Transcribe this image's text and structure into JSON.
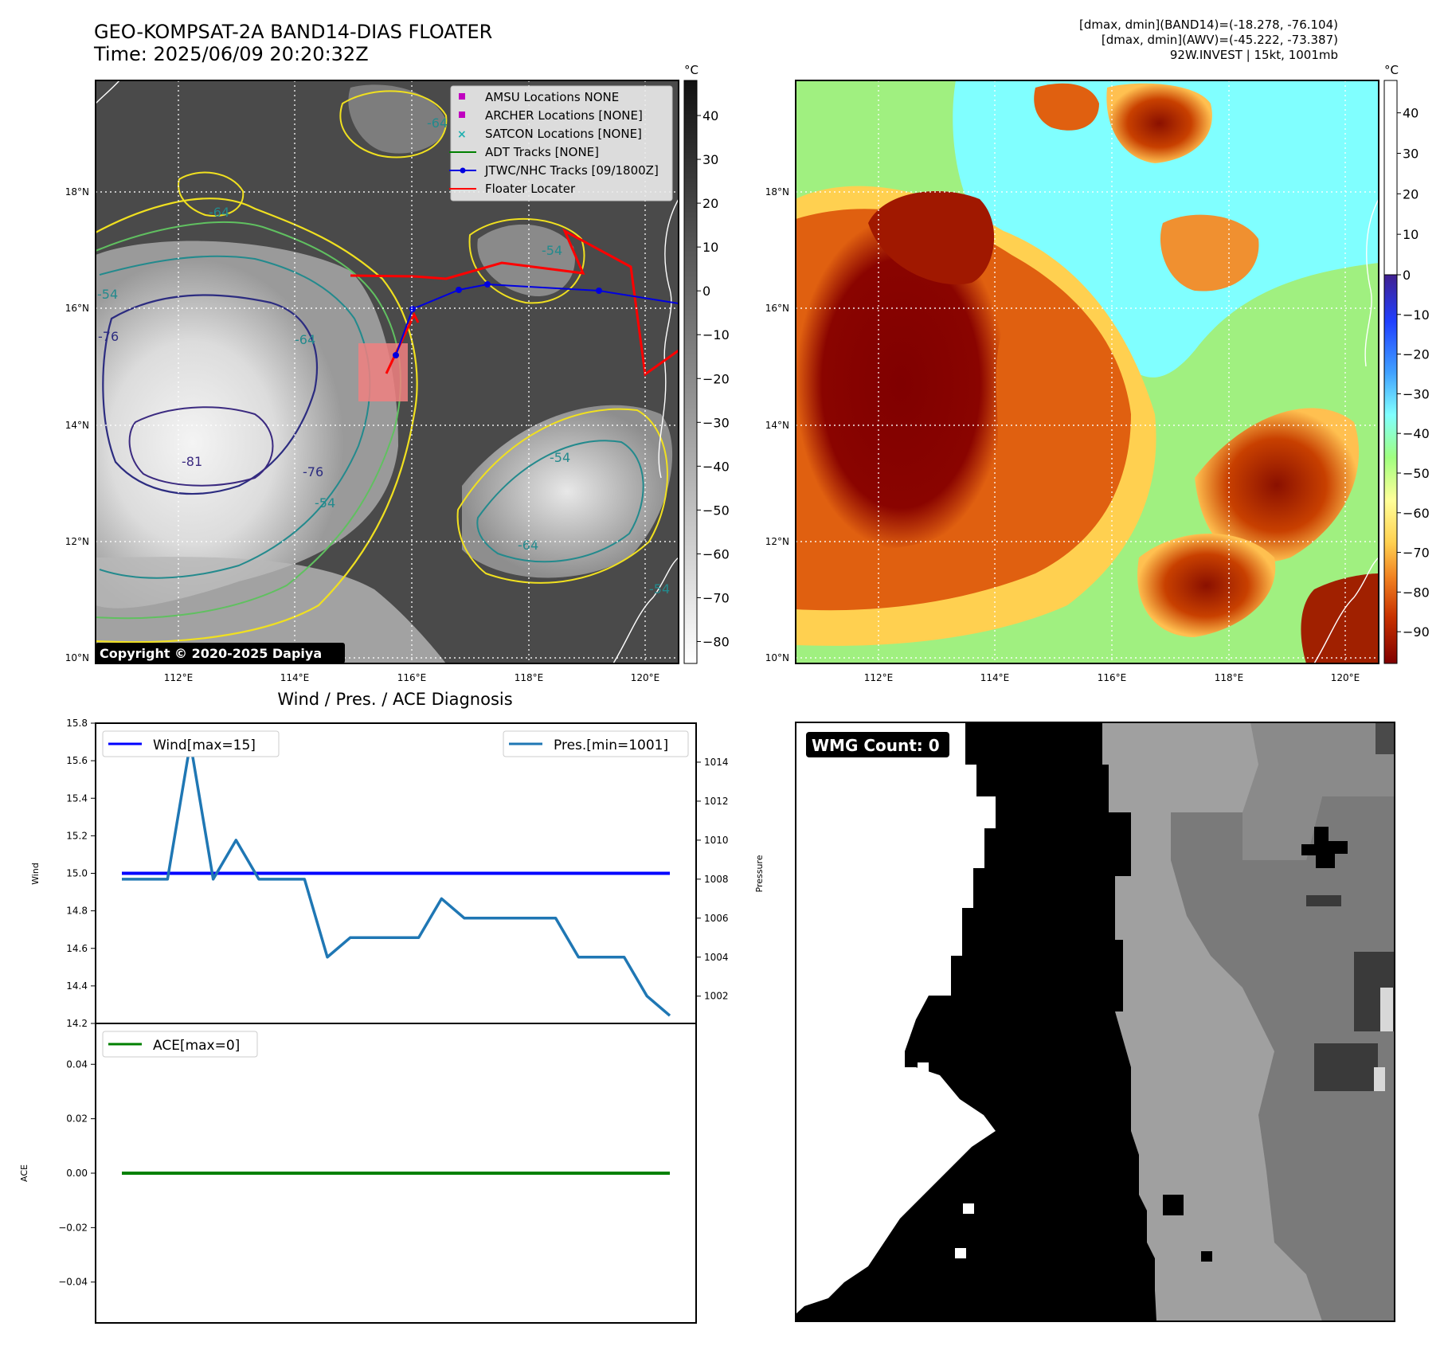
{
  "header": {
    "title_line1": "GEO-KOMPSAT-2A BAND14-DIAS FLOATER",
    "title_line2": "Time: 2025/06/09 20:20:32Z",
    "info_line1": "[dmax, dmin](BAND14)=(-18.278, -76.104)",
    "info_line2": "[dmax, dmin](AWV)=(-45.222, -73.387)",
    "info_line3": "92W.INVEST | 15kt, 1001mb"
  },
  "maps": {
    "lon_ticks": [
      "112°E",
      "114°E",
      "116°E",
      "118°E",
      "120°E"
    ],
    "lat_ticks": [
      "18°N",
      "16°N",
      "14°N",
      "12°N",
      "10°N"
    ],
    "copyright": "Copyright © 2020-2025 Dapiya",
    "contour_labels": [
      "-64",
      "-76",
      "-54",
      "-64",
      "-76",
      "-81",
      "-54",
      "-64",
      "-54",
      "-64",
      "-54",
      "-54"
    ]
  },
  "colorbar_left": {
    "unit": "°C",
    "ticks": [
      "40",
      "30",
      "20",
      "10",
      "0",
      "−10",
      "−20",
      "−30",
      "−40",
      "−50",
      "−60",
      "−70",
      "−80"
    ]
  },
  "colorbar_right": {
    "unit": "°C",
    "ticks": [
      "40",
      "30",
      "20",
      "10",
      "0",
      "−10",
      "−20",
      "−30",
      "−40",
      "−50",
      "−60",
      "−70",
      "−80",
      "−90"
    ],
    "colors": [
      "#800000",
      "#c83200",
      "#f08020",
      "#ffd050",
      "#ffff99",
      "#a0ff80",
      "#80ffff",
      "#40a0ff",
      "#2040ff",
      "#402090",
      "#ffffff"
    ]
  },
  "legend": {
    "items": [
      {
        "label": "AMSU Locations NONE",
        "kind": "square",
        "color": "#c000c0"
      },
      {
        "label": "ARCHER Locations [NONE]",
        "kind": "square",
        "color": "#c000c0"
      },
      {
        "label": "SATCON Locations [NONE]",
        "kind": "x",
        "color": "#20b0b0"
      },
      {
        "label": "ADT Tracks [NONE]",
        "kind": "line",
        "color": "#008000"
      },
      {
        "label": "JTWC/NHC Tracks [09/1800Z]",
        "kind": "dotline",
        "color": "#0000e0"
      },
      {
        "label": "Floater Locater",
        "kind": "line",
        "color": "#ff0000"
      }
    ]
  },
  "wmg": {
    "label": "WMG Count: 0"
  },
  "chart_data": [
    {
      "type": "line",
      "title": "Wind / Pres. / ACE Diagnosis",
      "ylabel": "Wind",
      "ylabel_right": "Pressure",
      "ylim": [
        14.2,
        15.8
      ],
      "y_ticks": [
        "15.8",
        "15.6",
        "15.4",
        "15.2",
        "15.0",
        "14.8",
        "14.6",
        "14.4",
        "14.2"
      ],
      "ylim_right": [
        1000.6,
        1016.0
      ],
      "y_ticks_right": [
        "1014",
        "1012",
        "1010",
        "1008",
        "1006",
        "1004",
        "1002"
      ],
      "legend_placement": [
        "upper left",
        "upper right"
      ],
      "series": [
        {
          "name": "Wind[max=15]",
          "axis": "left",
          "color": "#0000ff",
          "x": [
            0,
            24
          ],
          "y": [
            15,
            15
          ]
        },
        {
          "name": "Pres.[min=1001]",
          "axis": "right",
          "color": "#1f77b4",
          "x": [
            0,
            1,
            2,
            3,
            4,
            5,
            6,
            7,
            8,
            9,
            10,
            11,
            12,
            13,
            14,
            15,
            16,
            17,
            18,
            19,
            20,
            21,
            22,
            23,
            24
          ],
          "y": [
            1008,
            1008,
            1008,
            1015,
            1008,
            1010,
            1008,
            1008,
            1008,
            1004,
            1005,
            1005,
            1005,
            1005,
            1007,
            1006,
            1006,
            1006,
            1006,
            1006,
            1004,
            1004,
            1004,
            1002,
            1001
          ]
        }
      ]
    },
    {
      "type": "line",
      "ylabel": "ACE",
      "ylim": [
        -0.055,
        0.055
      ],
      "y_ticks": [
        "0.04",
        "0.02",
        "0.00",
        "−0.02",
        "−0.04"
      ],
      "legend_placement": "upper left",
      "series": [
        {
          "name": "ACE[max=0]",
          "color": "#008000",
          "x": [
            0,
            24
          ],
          "y": [
            0,
            0
          ]
        }
      ]
    }
  ]
}
